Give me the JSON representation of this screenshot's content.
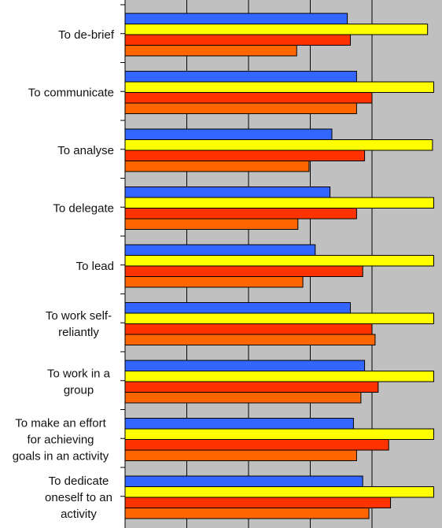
{
  "chart_data": {
    "type": "bar",
    "orientation": "horizontal",
    "title": "",
    "xlabel": "",
    "ylabel": "",
    "grid": true,
    "xlim": [
      0,
      5
    ],
    "categories": [
      "To de-brief",
      "To communicate",
      "To analyse",
      "To delegate",
      "To lead",
      "To work self-reliantly",
      "To work in a group",
      "To make an effort for achieving goals in an activity",
      "To dedicate oneself to an activity"
    ],
    "category_lines": [
      [
        "To de-brief"
      ],
      [
        "To communicate"
      ],
      [
        "To analyse"
      ],
      [
        "To delegate"
      ],
      [
        "To lead"
      ],
      [
        "To work self-",
        "reliantly"
      ],
      [
        "To work in a",
        "group"
      ],
      [
        "To make an effort",
        "for achieving",
        "goals in an activity"
      ],
      [
        "To dedicate",
        "oneself to an",
        "activity"
      ]
    ],
    "series": [
      {
        "color": "#3366ff",
        "values": [
          3.6,
          3.75,
          3.35,
          3.32,
          3.08,
          3.65,
          3.88,
          3.7,
          3.85
        ]
      },
      {
        "color": "#ffff00",
        "values": [
          4.9,
          5.0,
          4.98,
          5.0,
          5.0,
          5.0,
          5.0,
          5.0,
          5.0
        ]
      },
      {
        "color": "#ff3300",
        "values": [
          3.65,
          4.0,
          3.88,
          3.75,
          3.85,
          4.0,
          4.1,
          4.27,
          4.3
        ]
      },
      {
        "color": "#ff6600",
        "values": [
          2.78,
          3.75,
          2.98,
          2.8,
          2.88,
          4.05,
          3.82,
          3.75,
          3.95
        ]
      }
    ]
  }
}
